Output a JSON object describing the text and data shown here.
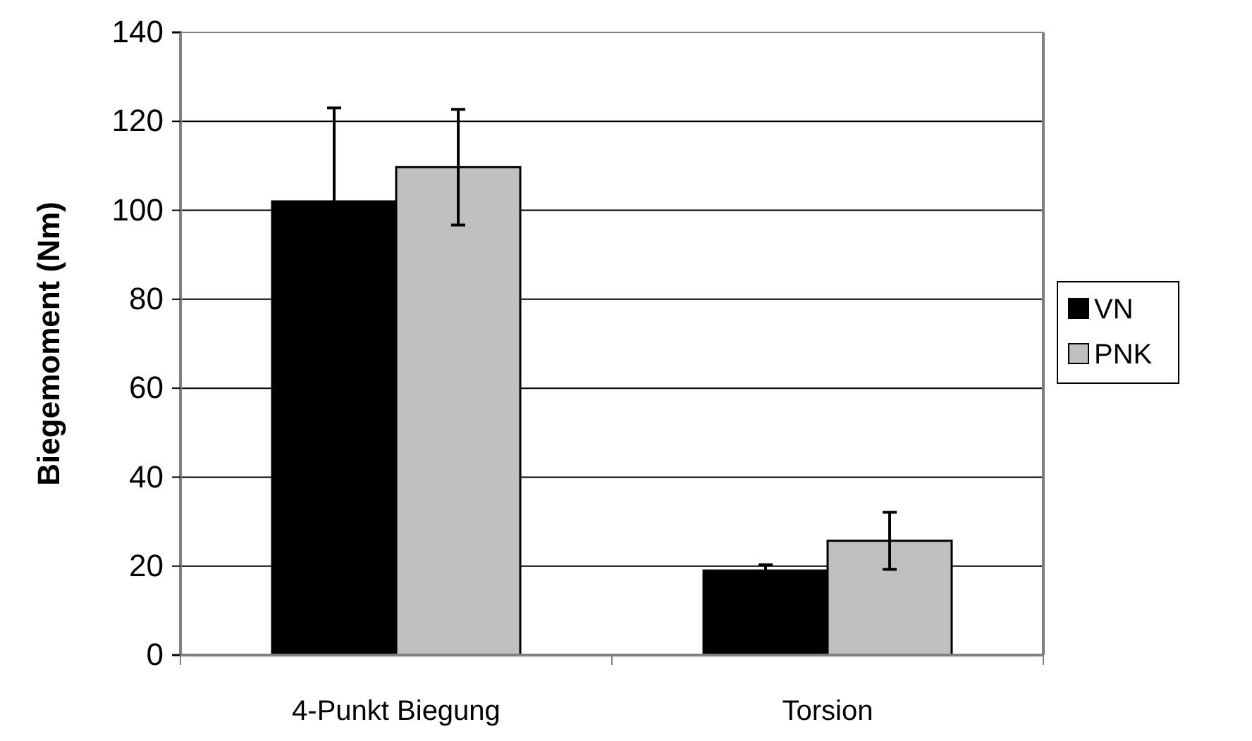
{
  "chart_data": {
    "type": "bar",
    "ylabel": "Biegemoment (Nm)",
    "categories": [
      "4-Punkt Biegung",
      "Torsion"
    ],
    "series": [
      {
        "name": "VN",
        "color": "#000000",
        "values": [
          102,
          19
        ],
        "errors": [
          21,
          1.3
        ]
      },
      {
        "name": "PNK",
        "color": "#c0c0c0",
        "values": [
          109.7,
          25.7
        ],
        "errors": [
          13,
          6.4
        ]
      }
    ],
    "ylim": [
      0,
      140
    ],
    "yticks": [
      0,
      20,
      40,
      60,
      80,
      100,
      120,
      140
    ],
    "grid": "y",
    "legend": "right"
  }
}
